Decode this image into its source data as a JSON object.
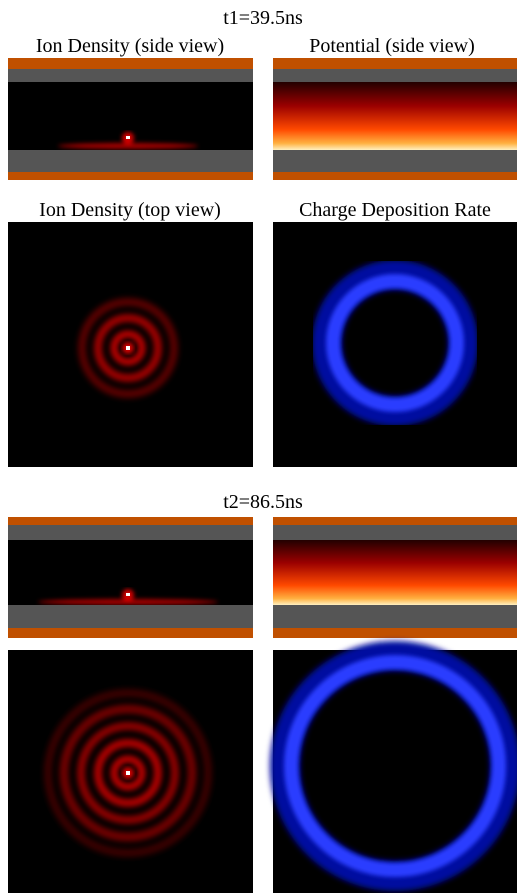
{
  "sections": [
    {
      "label": "t1=39.5ns",
      "titles": [
        "Ion Density (side view)",
        "Potential (side view)",
        "Ion Density (top view)",
        "Charge Deposition Rate"
      ]
    },
    {
      "label": "t2=86.5ns"
    }
  ]
}
